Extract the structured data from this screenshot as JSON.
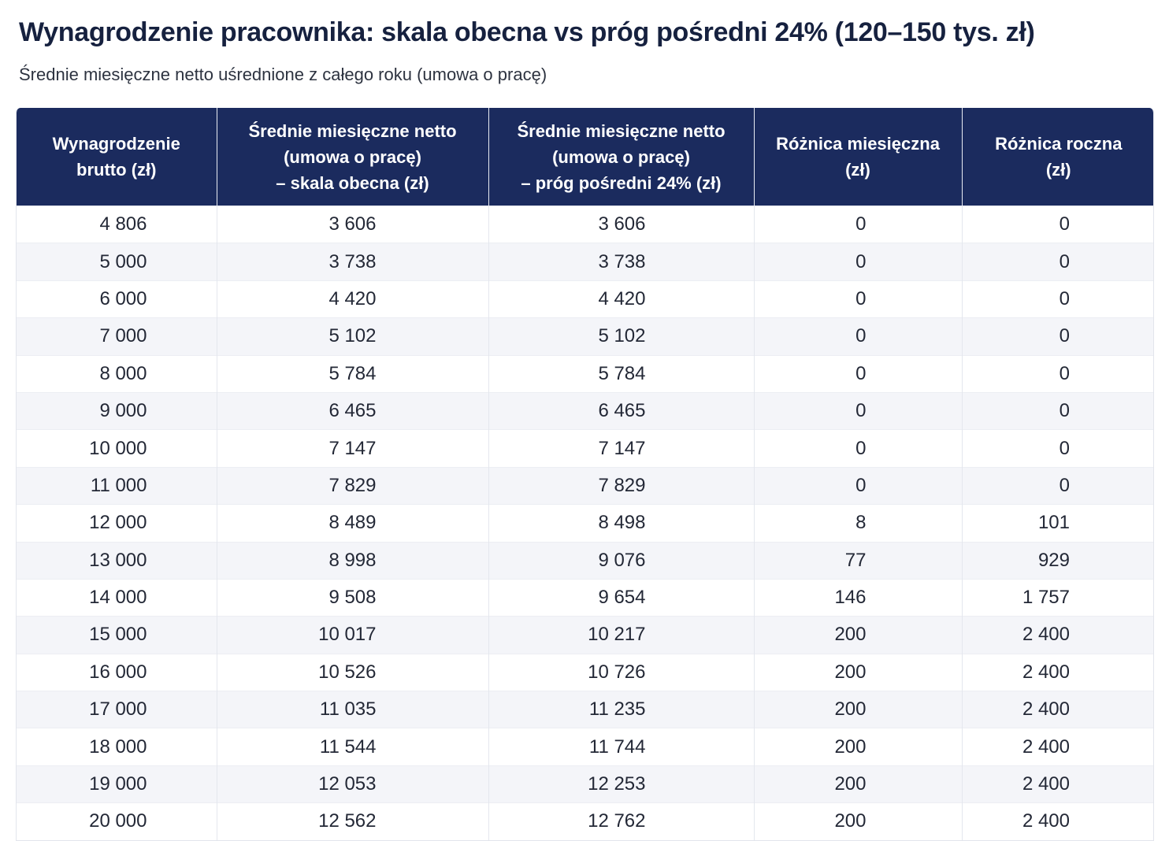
{
  "title": "Wynagrodzenie pracownika: skala obecna vs próg pośredni 24% (120–150 tys. zł)",
  "subtitle": "Średnie miesięczne netto uśrednione z całego roku (umowa o pracę)",
  "table": {
    "headers": [
      "Wynagrodzenie\nbrutto (zł)",
      "Średnie miesięczne netto\n(umowa o pracę)\n– skala obecna (zł)",
      "Średnie miesięczne netto\n(umowa o pracę)\n– próg pośredni 24% (zł)",
      "Różnica miesięczna\n(zł)",
      "Różnica roczna\n(zł)"
    ],
    "rows": [
      [
        "4 806",
        "3 606",
        "3 606",
        "0",
        "0"
      ],
      [
        "5 000",
        "3 738",
        "3 738",
        "0",
        "0"
      ],
      [
        "6 000",
        "4 420",
        "4 420",
        "0",
        "0"
      ],
      [
        "7 000",
        "5 102",
        "5 102",
        "0",
        "0"
      ],
      [
        "8 000",
        "5 784",
        "5 784",
        "0",
        "0"
      ],
      [
        "9 000",
        "6 465",
        "6 465",
        "0",
        "0"
      ],
      [
        "10 000",
        "7 147",
        "7 147",
        "0",
        "0"
      ],
      [
        "11 000",
        "7 829",
        "7 829",
        "0",
        "0"
      ],
      [
        "12 000",
        "8 489",
        "8 498",
        "8",
        "101"
      ],
      [
        "13 000",
        "8 998",
        "9 076",
        "77",
        "929"
      ],
      [
        "14 000",
        "9 508",
        "9 654",
        "146",
        "1 757"
      ],
      [
        "15 000",
        "10 017",
        "10 217",
        "200",
        "2 400"
      ],
      [
        "16 000",
        "10 526",
        "10 726",
        "200",
        "2 400"
      ],
      [
        "17 000",
        "11 035",
        "11 235",
        "200",
        "2 400"
      ],
      [
        "18 000",
        "11 544",
        "11 744",
        "200",
        "2 400"
      ],
      [
        "19 000",
        "12 053",
        "12 253",
        "200",
        "2 400"
      ],
      [
        "20 000",
        "12 562",
        "12 762",
        "200",
        "2 400"
      ]
    ]
  },
  "colors": {
    "header_background": "#1b2b5e",
    "header_text": "#ffffff",
    "title_text": "#16213f",
    "stripe": "#f4f5f9"
  }
}
